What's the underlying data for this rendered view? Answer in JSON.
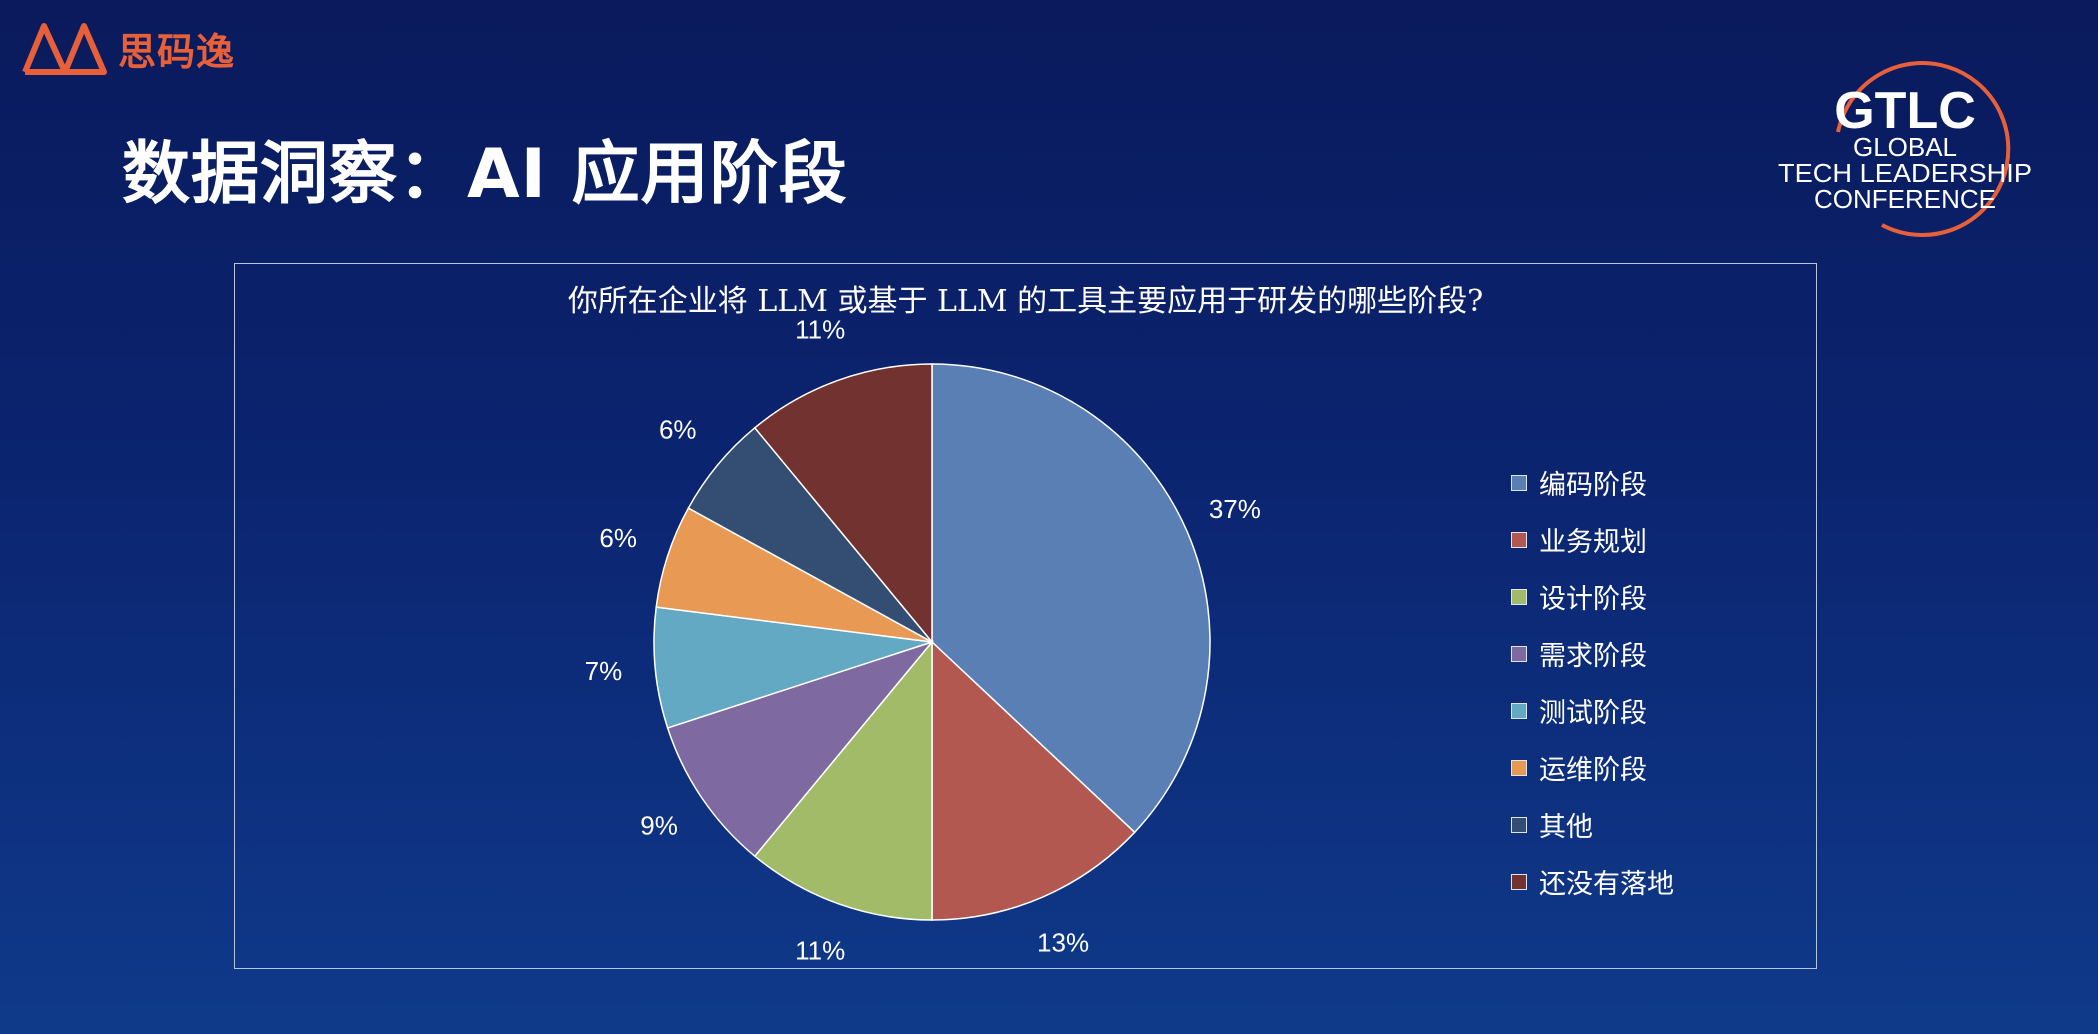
{
  "brand": {
    "name": "思码逸",
    "color": "#e8603a"
  },
  "page": {
    "title": "数据洞察：AI 应用阶段"
  },
  "conference_logo": {
    "acronym": "GTLC",
    "line1": "GLOBAL",
    "line2": "TECH LEADERSHIP",
    "line3": "CONFERENCE",
    "accent": "#e8603a"
  },
  "chart_data": {
    "type": "pie",
    "title": "你所在企业将 LLM 或基于 LLM 的工具主要应用于研发的哪些阶段?",
    "legend_position": "right",
    "slices": [
      {
        "label": "编码阶段",
        "value": 37,
        "display": "37%",
        "color": "#5a7fb5"
      },
      {
        "label": "业务规划",
        "value": 13,
        "display": "13%",
        "color": "#b25850"
      },
      {
        "label": "设计阶段",
        "value": 11,
        "display": "11%",
        "color": "#a1bb69"
      },
      {
        "label": "需求阶段",
        "value": 9,
        "display": "9%",
        "color": "#7e6aa0"
      },
      {
        "label": "测试阶段",
        "value": 7,
        "display": "7%",
        "color": "#63a9c3"
      },
      {
        "label": "运维阶段",
        "value": 6,
        "display": "6%",
        "color": "#e89a55"
      },
      {
        "label": "其他",
        "value": 6,
        "display": "6%",
        "color": "#344d72"
      },
      {
        "label": "还没有落地",
        "value": 11,
        "display": "11%",
        "color": "#723230"
      }
    ]
  }
}
